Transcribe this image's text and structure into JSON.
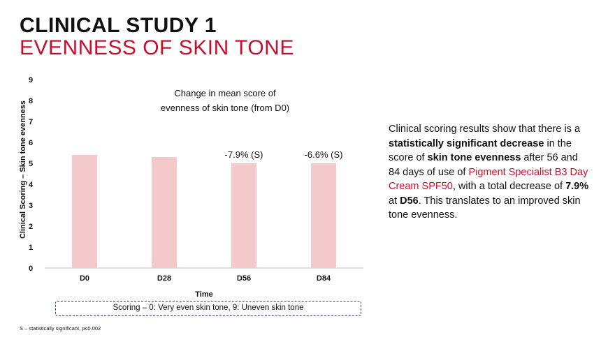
{
  "title": {
    "line1": "CLINICAL STUDY 1",
    "line2": "EVENNESS OF SKIN TONE"
  },
  "colors": {
    "accent": "#c8102e",
    "bar": "#f4c9cb",
    "legend_border": "#2e3f6f"
  },
  "chart_data": {
    "type": "bar",
    "categories": [
      "D0",
      "D28",
      "D56",
      "D84"
    ],
    "values": [
      5.4,
      5.3,
      5.0,
      5.0
    ],
    "annotations": [
      "",
      "",
      "-7.9% (S)",
      "-6.6% (S)"
    ],
    "chart_title_lines": [
      "Change in mean score of",
      "evenness of skin tone (from D0)"
    ],
    "xlabel": "Time",
    "ylabel": "Clinical Scoring – Skin tone evenness",
    "ylim": [
      0,
      9
    ],
    "yticks": [
      0,
      1,
      2,
      3,
      4,
      5,
      6,
      7,
      8,
      9
    ],
    "grid": false
  },
  "legend_note": "Scoring – 0: Very even skin tone, 9: Uneven skin tone",
  "footnote": "S – statistically significant, p≤0.002",
  "summary": {
    "p1": "Clinical scoring results show that there is a ",
    "b1": "statistically significant decrease",
    "p2": " in the score of ",
    "b2": "skin tone evenness",
    "p3": " after 56 and 84 days of use of ",
    "product": "Pigment Specialist B3 Day Cream SPF50",
    "p4": ", with a total decrease of ",
    "b3": "7.9%",
    "p5": " at ",
    "b4": "D56",
    "p6": ". This translates to an improved skin tone evenness."
  }
}
